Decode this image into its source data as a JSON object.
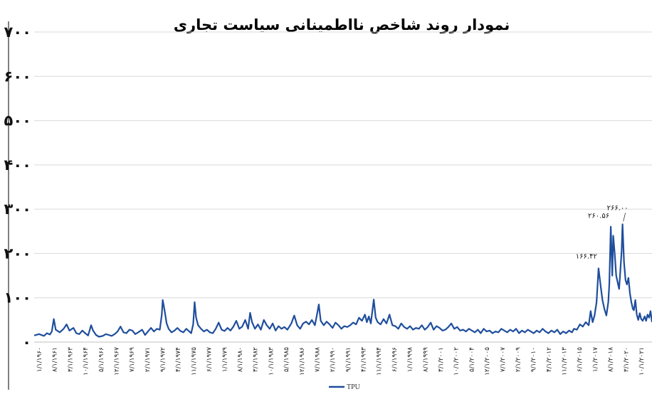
{
  "chart_data": {
    "type": "line",
    "title": "نمودار روند شاخص نااطمینانی سیاست تجاری",
    "xlabel": "",
    "ylabel": "",
    "ylim": [
      0,
      700
    ],
    "yticks": [
      "۰",
      "۱۰۰",
      "۲۰۰",
      "۳۰۰",
      "۴۰۰",
      "۵۰۰",
      "۶۰۰",
      "۷۰۰"
    ],
    "ytick_values": [
      0,
      100,
      200,
      300,
      400,
      500,
      600,
      700
    ],
    "grid": "horizontal",
    "legend": "bottom",
    "xticks": [
      "۱/۱/۱۹۶۰",
      "۸/۱/۱۹۶۱",
      "۳/۱/۱۹۶۳",
      "۱۰/۱/۱۹۶۴",
      "۵/۱/۱۹۶۶",
      "۱۲/۱/۱۹۶۷",
      "۷/۱/۱۹۶۹",
      "۲/۱/۱۹۷۱",
      "۹/۱/۱۹۷۲",
      "۴/۱/۱۹۷۴",
      "۱۱/۱/۱۹۷۵",
      "۶/۱/۱۹۷۷",
      "۱/۱/۱۹۷۹",
      "۸/۱/۱۹۸۰",
      "۳/۱/۱۹۸۲",
      "۱۰/۱/۱۹۸۳",
      "۵/۱/۱۹۸۵",
      "۱۲/۱/۱۹۸۶",
      "۷/۱/۱۹۸۸",
      "۲/۱/۱۹۹۰",
      "۹/۱/۱۹۹۱",
      "۴/۱/۱۹۹۳",
      "۱۱/۱/۱۹۹۴",
      "۶/۱/۱۹۹۶",
      "۱/۱/۱۹۹۸",
      "۸/۱/۱۹۹۹",
      "۳/۱/۲۰۰۱",
      "۱۰/۱/۲۰۰۲",
      "۵/۱/۲۰۰۴",
      "۱۲/۱/۲۰۰۵",
      "۷/۱/۲۰۰۷",
      "۲/۱/۲۰۰۹",
      "۹/۱/۲۰۱۰",
      "۴/۱/۲۰۱۲",
      "۱۱/۱/۲۰۱۳",
      "۶/۱/۲۰۱۵",
      "۱/۱/۲۰۱۷",
      "۸/۱/۲۰۱۸",
      "۳/۱/۲۰۲۰",
      "۱۰/۱/۲۰۲۱"
    ],
    "series": [
      {
        "name": "TPU",
        "color": "#1f4e9c",
        "values": [
          [
            1960.0,
            15
          ],
          [
            1960.5,
            18
          ],
          [
            1961.0,
            14
          ],
          [
            1961.3,
            20
          ],
          [
            1961.6,
            17
          ],
          [
            1961.8,
            24
          ],
          [
            1962.0,
            52
          ],
          [
            1962.2,
            28
          ],
          [
            1962.6,
            22
          ],
          [
            1963.0,
            30
          ],
          [
            1963.3,
            40
          ],
          [
            1963.6,
            26
          ],
          [
            1964.0,
            32
          ],
          [
            1964.3,
            20
          ],
          [
            1964.6,
            18
          ],
          [
            1964.9,
            26
          ],
          [
            1965.2,
            20
          ],
          [
            1965.5,
            15
          ],
          [
            1965.8,
            38
          ],
          [
            1966.0,
            26
          ],
          [
            1966.3,
            16
          ],
          [
            1966.6,
            12
          ],
          [
            1967.0,
            14
          ],
          [
            1967.3,
            18
          ],
          [
            1967.6,
            16
          ],
          [
            1967.9,
            14
          ],
          [
            1968.2,
            18
          ],
          [
            1968.5,
            24
          ],
          [
            1968.8,
            35
          ],
          [
            1969.1,
            22
          ],
          [
            1969.4,
            20
          ],
          [
            1969.7,
            28
          ],
          [
            1970.0,
            26
          ],
          [
            1970.3,
            18
          ],
          [
            1970.6,
            22
          ],
          [
            1971.0,
            28
          ],
          [
            1971.3,
            16
          ],
          [
            1971.6,
            24
          ],
          [
            1971.9,
            32
          ],
          [
            1972.2,
            24
          ],
          [
            1972.5,
            30
          ],
          [
            1972.8,
            28
          ],
          [
            1973.0,
            62
          ],
          [
            1973.1,
            95
          ],
          [
            1973.3,
            70
          ],
          [
            1973.5,
            42
          ],
          [
            1973.7,
            30
          ],
          [
            1974.0,
            22
          ],
          [
            1974.3,
            26
          ],
          [
            1974.6,
            32
          ],
          [
            1974.9,
            25
          ],
          [
            1975.2,
            22
          ],
          [
            1975.5,
            30
          ],
          [
            1975.8,
            24
          ],
          [
            1976.0,
            20
          ],
          [
            1976.2,
            40
          ],
          [
            1976.35,
            90
          ],
          [
            1976.5,
            55
          ],
          [
            1976.7,
            38
          ],
          [
            1977.0,
            30
          ],
          [
            1977.3,
            24
          ],
          [
            1977.6,
            28
          ],
          [
            1977.9,
            22
          ],
          [
            1978.2,
            20
          ],
          [
            1978.5,
            30
          ],
          [
            1978.8,
            44
          ],
          [
            1979.1,
            28
          ],
          [
            1979.4,
            25
          ],
          [
            1979.7,
            32
          ],
          [
            1980.0,
            26
          ],
          [
            1980.3,
            35
          ],
          [
            1980.6,
            48
          ],
          [
            1980.9,
            30
          ],
          [
            1981.2,
            35
          ],
          [
            1981.5,
            50
          ],
          [
            1981.8,
            30
          ],
          [
            1982.0,
            66
          ],
          [
            1982.2,
            45
          ],
          [
            1982.5,
            30
          ],
          [
            1982.8,
            40
          ],
          [
            1983.1,
            28
          ],
          [
            1983.4,
            50
          ],
          [
            1983.7,
            38
          ],
          [
            1984.0,
            30
          ],
          [
            1984.3,
            42
          ],
          [
            1984.6,
            26
          ],
          [
            1984.9,
            36
          ],
          [
            1985.2,
            30
          ],
          [
            1985.5,
            34
          ],
          [
            1985.8,
            28
          ],
          [
            1986.0,
            35
          ],
          [
            1986.2,
            42
          ],
          [
            1986.5,
            60
          ],
          [
            1986.8,
            38
          ],
          [
            1987.1,
            30
          ],
          [
            1987.4,
            42
          ],
          [
            1987.7,
            46
          ],
          [
            1988.0,
            40
          ],
          [
            1988.3,
            50
          ],
          [
            1988.6,
            38
          ],
          [
            1988.8,
            60
          ],
          [
            1989.0,
            85
          ],
          [
            1989.2,
            48
          ],
          [
            1989.5,
            38
          ],
          [
            1989.8,
            46
          ],
          [
            1990.1,
            40
          ],
          [
            1990.4,
            32
          ],
          [
            1990.7,
            44
          ],
          [
            1991.0,
            38
          ],
          [
            1991.3,
            30
          ],
          [
            1991.6,
            36
          ],
          [
            1991.9,
            34
          ],
          [
            1992.2,
            38
          ],
          [
            1992.5,
            44
          ],
          [
            1992.8,
            40
          ],
          [
            1993.1,
            55
          ],
          [
            1993.4,
            48
          ],
          [
            1993.7,
            62
          ],
          [
            1993.9,
            45
          ],
          [
            1994.1,
            58
          ],
          [
            1994.3,
            42
          ],
          [
            1994.6,
            96
          ],
          [
            1994.8,
            55
          ],
          [
            1995.0,
            45
          ],
          [
            1995.3,
            40
          ],
          [
            1995.6,
            52
          ],
          [
            1995.9,
            42
          ],
          [
            1996.2,
            62
          ],
          [
            1996.5,
            38
          ],
          [
            1996.8,
            36
          ],
          [
            1997.1,
            30
          ],
          [
            1997.4,
            42
          ],
          [
            1997.7,
            34
          ],
          [
            1998.0,
            30
          ],
          [
            1998.3,
            36
          ],
          [
            1998.6,
            28
          ],
          [
            1998.9,
            32
          ],
          [
            1999.2,
            30
          ],
          [
            1999.5,
            38
          ],
          [
            1999.8,
            28
          ],
          [
            2000.1,
            34
          ],
          [
            2000.4,
            44
          ],
          [
            2000.7,
            28
          ],
          [
            2001.0,
            36
          ],
          [
            2001.3,
            32
          ],
          [
            2001.6,
            26
          ],
          [
            2001.9,
            28
          ],
          [
            2002.2,
            34
          ],
          [
            2002.5,
            42
          ],
          [
            2002.8,
            30
          ],
          [
            2003.1,
            34
          ],
          [
            2003.4,
            26
          ],
          [
            2003.7,
            28
          ],
          [
            2004.0,
            24
          ],
          [
            2004.3,
            30
          ],
          [
            2004.6,
            26
          ],
          [
            2004.9,
            22
          ],
          [
            2005.2,
            28
          ],
          [
            2005.5,
            20
          ],
          [
            2005.8,
            30
          ],
          [
            2006.1,
            24
          ],
          [
            2006.4,
            26
          ],
          [
            2006.7,
            20
          ],
          [
            2007.0,
            24
          ],
          [
            2007.3,
            22
          ],
          [
            2007.6,
            30
          ],
          [
            2007.9,
            26
          ],
          [
            2008.2,
            22
          ],
          [
            2008.5,
            28
          ],
          [
            2008.8,
            24
          ],
          [
            2009.1,
            30
          ],
          [
            2009.4,
            20
          ],
          [
            2009.7,
            26
          ],
          [
            2010.0,
            22
          ],
          [
            2010.3,
            28
          ],
          [
            2010.6,
            24
          ],
          [
            2010.9,
            20
          ],
          [
            2011.2,
            26
          ],
          [
            2011.5,
            22
          ],
          [
            2011.8,
            30
          ],
          [
            2012.1,
            24
          ],
          [
            2012.4,
            20
          ],
          [
            2012.7,
            26
          ],
          [
            2013.0,
            22
          ],
          [
            2013.3,
            28
          ],
          [
            2013.6,
            18
          ],
          [
            2013.9,
            24
          ],
          [
            2014.2,
            20
          ],
          [
            2014.5,
            26
          ],
          [
            2014.8,
            22
          ],
          [
            2015.0,
            30
          ],
          [
            2015.3,
            28
          ],
          [
            2015.6,
            40
          ],
          [
            2015.9,
            35
          ],
          [
            2016.2,
            45
          ],
          [
            2016.5,
            38
          ],
          [
            2016.7,
            70
          ],
          [
            2016.9,
            45
          ],
          [
            2017.1,
            60
          ],
          [
            2017.3,
            90
          ],
          [
            2017.5,
            166.42
          ],
          [
            2017.7,
            130
          ],
          [
            2017.9,
            95
          ],
          [
            2018.1,
            75
          ],
          [
            2018.3,
            60
          ],
          [
            2018.5,
            90
          ],
          [
            2018.6,
            130
          ],
          [
            2018.75,
            260.56
          ],
          [
            2018.9,
            150
          ],
          [
            2019.0,
            240
          ],
          [
            2019.15,
            200
          ],
          [
            2019.3,
            150
          ],
          [
            2019.45,
            135
          ],
          [
            2019.6,
            120
          ],
          [
            2019.75,
            170
          ],
          [
            2019.85,
            205
          ],
          [
            2019.95,
            266
          ],
          [
            2020.1,
            180
          ],
          [
            2020.25,
            140
          ],
          [
            2020.4,
            130
          ],
          [
            2020.55,
            145
          ],
          [
            2020.7,
            110
          ],
          [
            2020.85,
            90
          ],
          [
            2021.0,
            75
          ],
          [
            2021.1,
            72
          ],
          [
            2021.25,
            95
          ],
          [
            2021.4,
            62
          ],
          [
            2021.55,
            50
          ],
          [
            2021.7,
            65
          ],
          [
            2021.85,
            52
          ],
          [
            2022.0,
            48
          ],
          [
            2022.2,
            58
          ],
          [
            2022.35,
            48
          ],
          [
            2022.5,
            62
          ],
          [
            2022.65,
            55
          ],
          [
            2022.8,
            70
          ],
          [
            2022.95,
            45
          ]
        ]
      }
    ],
    "annotations": [
      {
        "text": "۱۶۶.۴۲",
        "x": 2017.5,
        "y": 166.42
      },
      {
        "text": "۲۶۰.۵۶",
        "x": 2018.75,
        "y": 260.56
      },
      {
        "text": "۲۶۶.۰۰",
        "x": 2019.95,
        "y": 266
      }
    ]
  }
}
